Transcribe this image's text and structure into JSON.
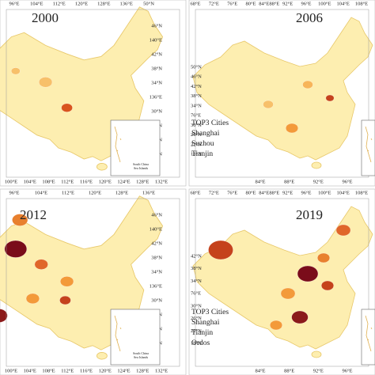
{
  "panels": [
    {
      "year": "2000",
      "top_axis": [
        "96°E",
        "104°E",
        "112°E",
        "120°E",
        "128°E",
        "136°E",
        "50°N"
      ],
      "side_axis": [
        "46°N",
        "140°E",
        "42°N",
        "38°N",
        "34°N",
        "136°E",
        "30°N",
        "26°N",
        "22°N",
        "18°N"
      ],
      "bottom_axis": [
        "100°E",
        "104°E",
        "108°E",
        "112°E",
        "116°E",
        "120°E",
        "124°E",
        "128°E",
        "132°E"
      ],
      "inset_label": [
        "South China",
        "Sea Islands"
      ]
    },
    {
      "year": "2006",
      "top_axis": [
        "68°E",
        "72°E",
        "76°E",
        "80°E",
        "84°E88°E",
        "92°E",
        "96°E",
        "100°E",
        "104°E",
        "108°E"
      ],
      "side_axis": [
        "50°N",
        "46°N",
        "42°N",
        "38°N",
        "34°N",
        "76°E",
        "30°N",
        "26°N",
        "22°N",
        "18°N"
      ],
      "bottom_axis": [
        "84°E",
        "88°E",
        "92°E",
        "96°E"
      ],
      "top3": {
        "title": "TOP3 Cities",
        "cities": [
          "Shanghai",
          "Suzhou",
          "Tianjin"
        ]
      }
    },
    {
      "year": "2012",
      "top_axis": [
        "96°E",
        "104°E",
        "112°E",
        "120°E",
        "128°E",
        "136°E"
      ],
      "side_axis": [
        "46°N",
        "140°E",
        "42°N",
        "38°N",
        "34°N",
        "136°E",
        "30°N",
        "26°N",
        "22°N",
        "18°N"
      ],
      "bottom_axis": [
        "100°E",
        "104°E",
        "108°E",
        "112°E",
        "116°E",
        "120°E",
        "124°E",
        "128°E",
        "132°E"
      ],
      "inset_label": [
        "South China",
        "Sea Islands"
      ]
    },
    {
      "year": "2019",
      "top_axis": [
        "68°E",
        "72°E",
        "76°E",
        "80°E",
        "84°E88°E",
        "92°E",
        "96°E",
        "100°E",
        "104°E",
        "108°E"
      ],
      "side_axis": [
        "42°N",
        "38°N",
        "34°N",
        "76°E",
        "30°N",
        "26°N",
        "22°N",
        "18°N"
      ],
      "bottom_axis": [
        "84°E",
        "88°E",
        "92°E",
        "96°E"
      ],
      "top3": {
        "title": "TOP3 Cities",
        "cities": [
          "Shanghai",
          "Tianjin",
          "Ordos"
        ]
      }
    }
  ]
}
